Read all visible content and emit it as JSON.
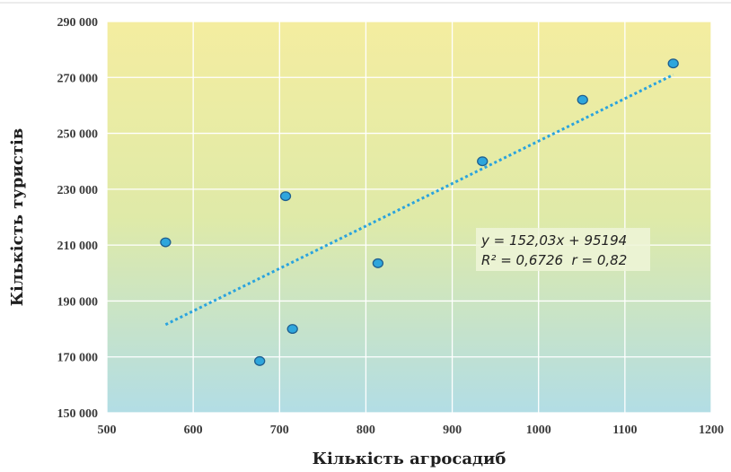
{
  "chart_data": {
    "type": "scatter",
    "title": "",
    "xlabel": "Кількість агросадиб",
    "ylabel": "Кількість туристів",
    "xlim": [
      500,
      1200
    ],
    "ylim": [
      150000,
      290000
    ],
    "x_ticks": [
      500,
      600,
      700,
      800,
      900,
      1000,
      1100,
      1200
    ],
    "y_ticks": [
      150000,
      170000,
      190000,
      210000,
      230000,
      250000,
      270000,
      290000
    ],
    "x_tick_labels": [
      "500",
      "600",
      "700",
      "800",
      "900",
      "1000",
      "1100",
      "1200"
    ],
    "y_tick_labels": [
      "150 000",
      "170 000",
      "190 000",
      "210 000",
      "230 000",
      "250 000",
      "270 000",
      "290 000"
    ],
    "grid": true,
    "points": [
      {
        "x": 568,
        "y": 211000
      },
      {
        "x": 677,
        "y": 168500
      },
      {
        "x": 707,
        "y": 227500
      },
      {
        "x": 715,
        "y": 180000
      },
      {
        "x": 814,
        "y": 203500
      },
      {
        "x": 935,
        "y": 240000
      },
      {
        "x": 1051,
        "y": 262000
      },
      {
        "x": 1156,
        "y": 275000
      }
    ],
    "trendline": {
      "type": "linear",
      "x_start": 568,
      "x_end": 1156,
      "slope": 152.03,
      "intercept": 95194
    },
    "equation_label": "y = 152,03x + 95194",
    "stats_label": "R² = 0,6726  r = 0,82",
    "colors": {
      "point_fill": "#2ea6dc",
      "point_stroke": "#1f5f8f",
      "trendline": "#2aa3de",
      "gradient_top": "#f4eda0",
      "gradient_bottom": "#b2dde5",
      "grid": "#ffffff"
    }
  }
}
